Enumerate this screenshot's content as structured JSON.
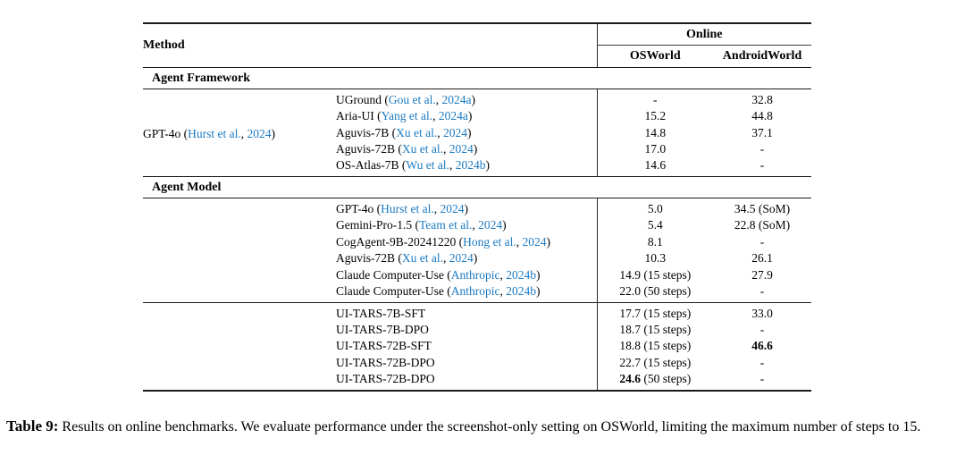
{
  "colors": {
    "citation": "#1b7ac2",
    "rule": "#1b1b1b",
    "text": "#000000",
    "background": "#ffffff"
  },
  "table": {
    "header": {
      "method": "Method",
      "group": "Online",
      "col1": "OSWorld",
      "col2": "AndroidWorld"
    },
    "sections": [
      {
        "type": "header",
        "label": "Agent Framework"
      },
      {
        "type": "rows",
        "group_label": [
          {
            "t": "GPT-4o ("
          },
          {
            "t": "Hurst et al.",
            "c": "cite"
          },
          {
            "t": ", "
          },
          {
            "t": "2024",
            "c": "cite"
          },
          {
            "t": ")"
          }
        ],
        "rows": [
          {
            "method": [
              {
                "t": "UGround ("
              },
              {
                "t": "Gou et al.",
                "c": "cite"
              },
              {
                "t": ", "
              },
              {
                "t": "2024a",
                "c": "cite"
              },
              {
                "t": ")"
              }
            ],
            "osworld": [
              {
                "t": "-"
              }
            ],
            "android": [
              {
                "t": "32.8"
              }
            ]
          },
          {
            "method": [
              {
                "t": "Aria-UI ("
              },
              {
                "t": "Yang et al.",
                "c": "cite"
              },
              {
                "t": ", "
              },
              {
                "t": "2024a",
                "c": "cite"
              },
              {
                "t": ")"
              }
            ],
            "osworld": [
              {
                "t": "15.2"
              }
            ],
            "android": [
              {
                "t": "44.8"
              }
            ]
          },
          {
            "method": [
              {
                "t": "Aguvis-7B ("
              },
              {
                "t": "Xu et al.",
                "c": "cite"
              },
              {
                "t": ", "
              },
              {
                "t": "2024",
                "c": "cite"
              },
              {
                "t": ")"
              }
            ],
            "osworld": [
              {
                "t": "14.8"
              }
            ],
            "android": [
              {
                "t": "37.1"
              }
            ]
          },
          {
            "method": [
              {
                "t": "Aguvis-72B ("
              },
              {
                "t": "Xu et al.",
                "c": "cite"
              },
              {
                "t": ", "
              },
              {
                "t": "2024",
                "c": "cite"
              },
              {
                "t": ")"
              }
            ],
            "osworld": [
              {
                "t": "17.0"
              }
            ],
            "android": [
              {
                "t": "-"
              }
            ]
          },
          {
            "method": [
              {
                "t": "OS-Atlas-7B ("
              },
              {
                "t": "Wu et al.",
                "c": "cite"
              },
              {
                "t": ", "
              },
              {
                "t": "2024b",
                "c": "cite"
              },
              {
                "t": ")"
              }
            ],
            "osworld": [
              {
                "t": "14.6"
              }
            ],
            "android": [
              {
                "t": "-"
              }
            ]
          }
        ]
      },
      {
        "type": "header",
        "label": "Agent Model"
      },
      {
        "type": "rows",
        "group_label": [],
        "rows": [
          {
            "method": [
              {
                "t": "GPT-4o ("
              },
              {
                "t": "Hurst et al.",
                "c": "cite"
              },
              {
                "t": ", "
              },
              {
                "t": "2024",
                "c": "cite"
              },
              {
                "t": ")"
              }
            ],
            "osworld": [
              {
                "t": "5.0"
              }
            ],
            "android": [
              {
                "t": "34.5 (SoM)"
              }
            ]
          },
          {
            "method": [
              {
                "t": "Gemini-Pro-1.5 ("
              },
              {
                "t": "Team et al.",
                "c": "cite"
              },
              {
                "t": ", "
              },
              {
                "t": "2024",
                "c": "cite"
              },
              {
                "t": ")"
              }
            ],
            "osworld": [
              {
                "t": "5.4"
              }
            ],
            "android": [
              {
                "t": "22.8 (SoM)"
              }
            ]
          },
          {
            "method": [
              {
                "t": "CogAgent-9B-20241220 ("
              },
              {
                "t": "Hong et al.",
                "c": "cite"
              },
              {
                "t": ", "
              },
              {
                "t": "2024",
                "c": "cite"
              },
              {
                "t": ")"
              }
            ],
            "osworld": [
              {
                "t": "8.1"
              }
            ],
            "android": [
              {
                "t": "-"
              }
            ]
          },
          {
            "method": [
              {
                "t": "Aguvis-72B ("
              },
              {
                "t": "Xu et al.",
                "c": "cite"
              },
              {
                "t": ", "
              },
              {
                "t": "2024",
                "c": "cite"
              },
              {
                "t": ")"
              }
            ],
            "osworld": [
              {
                "t": "10.3"
              }
            ],
            "android": [
              {
                "t": "26.1"
              }
            ]
          },
          {
            "method": [
              {
                "t": "Claude Computer-Use ("
              },
              {
                "t": "Anthropic",
                "c": "cite"
              },
              {
                "t": ", "
              },
              {
                "t": "2024b",
                "c": "cite"
              },
              {
                "t": ")"
              }
            ],
            "osworld": [
              {
                "t": "14.9 (15 steps)"
              }
            ],
            "android": [
              {
                "t": "27.9"
              }
            ]
          },
          {
            "method": [
              {
                "t": "Claude Computer-Use ("
              },
              {
                "t": "Anthropic",
                "c": "cite"
              },
              {
                "t": ", "
              },
              {
                "t": "2024b",
                "c": "cite"
              },
              {
                "t": ")"
              }
            ],
            "osworld": [
              {
                "t": "22.0 (50 steps)"
              }
            ],
            "android": [
              {
                "t": "-"
              }
            ]
          }
        ]
      },
      {
        "type": "rows",
        "rule_top": true,
        "group_label": [],
        "rows": [
          {
            "method": [
              {
                "t": "UI-TARS-7B-SFT"
              }
            ],
            "osworld": [
              {
                "t": "17.7 (15 steps)"
              }
            ],
            "android": [
              {
                "t": "33.0"
              }
            ]
          },
          {
            "method": [
              {
                "t": "UI-TARS-7B-DPO"
              }
            ],
            "osworld": [
              {
                "t": "18.7 (15 steps)"
              }
            ],
            "android": [
              {
                "t": "-"
              }
            ]
          },
          {
            "method": [
              {
                "t": "UI-TARS-72B-SFT"
              }
            ],
            "osworld": [
              {
                "t": "18.8 (15 steps)"
              }
            ],
            "android": [
              {
                "t": "46.6",
                "c": "b"
              }
            ]
          },
          {
            "method": [
              {
                "t": "UI-TARS-72B-DPO"
              }
            ],
            "osworld": [
              {
                "t": "22.7 (15 steps)"
              }
            ],
            "android": [
              {
                "t": "-"
              }
            ]
          },
          {
            "method": [
              {
                "t": "UI-TARS-72B-DPO"
              }
            ],
            "osworld": [
              {
                "t": "24.6",
                "c": "b"
              },
              {
                "t": " (50 steps)"
              }
            ],
            "android": [
              {
                "t": "-"
              }
            ]
          }
        ]
      }
    ]
  },
  "caption": {
    "label": "Table 9:",
    "text": "Results on online benchmarks. We evaluate performance under the screenshot-only setting on OSWorld, limiting the maximum number of steps to 15."
  }
}
